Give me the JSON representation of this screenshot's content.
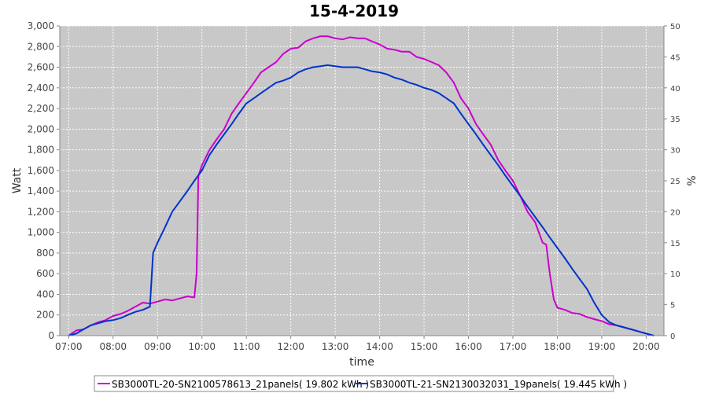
{
  "chart_data": {
    "type": "line",
    "title": "15-4-2019",
    "xlabel": "time",
    "ylabel": "Watt",
    "y2label": "%",
    "xlim": [
      6.8,
      20.4
    ],
    "ylim": [
      0,
      3000
    ],
    "y2lim": [
      0,
      50
    ],
    "xticks": [
      7,
      8,
      9,
      10,
      11,
      12,
      13,
      14,
      15,
      16,
      17,
      18,
      19,
      20
    ],
    "xtick_labels": [
      "07:00",
      "08:00",
      "09:00",
      "10:00",
      "11:00",
      "12:00",
      "13:00",
      "14:00",
      "15:00",
      "16:00",
      "17:00",
      "18:00",
      "19:00",
      "20:00"
    ],
    "yticks": [
      0,
      200,
      400,
      600,
      800,
      1000,
      1200,
      1400,
      1600,
      1800,
      2000,
      2200,
      2400,
      2600,
      2800,
      3000
    ],
    "ytick_labels": [
      "0",
      "200",
      "400",
      "600",
      "800",
      "1,000",
      "1,200",
      "1,400",
      "1,600",
      "1,800",
      "2,000",
      "2,200",
      "2,400",
      "2,600",
      "2,800",
      "3,000"
    ],
    "y2ticks": [
      0,
      5,
      10,
      15,
      20,
      25,
      30,
      35,
      40,
      45,
      50
    ],
    "y2tick_labels": [
      "0",
      "5",
      "10",
      "15",
      "20",
      "25",
      "30",
      "35",
      "40",
      "45",
      "50"
    ],
    "grid": true,
    "legend_position": "bottom",
    "series": [
      {
        "name": "SB3000TL-20-SN2100578613_21panels( 19.802 kWh )",
        "color": "#cc00cc",
        "x": [
          7.0,
          7.17,
          7.33,
          7.5,
          7.67,
          7.83,
          8.0,
          8.17,
          8.33,
          8.5,
          8.67,
          8.83,
          9.0,
          9.17,
          9.33,
          9.5,
          9.67,
          9.83,
          9.88,
          9.92,
          10.0,
          10.17,
          10.33,
          10.5,
          10.67,
          10.83,
          11.0,
          11.17,
          11.33,
          11.5,
          11.67,
          11.83,
          12.0,
          12.17,
          12.33,
          12.5,
          12.67,
          12.83,
          13.0,
          13.17,
          13.33,
          13.5,
          13.67,
          13.83,
          14.0,
          14.17,
          14.33,
          14.5,
          14.67,
          14.83,
          15.0,
          15.17,
          15.33,
          15.5,
          15.67,
          15.83,
          16.0,
          16.17,
          16.33,
          16.5,
          16.67,
          16.83,
          17.0,
          17.17,
          17.33,
          17.5,
          17.67,
          17.75,
          17.83,
          17.92,
          18.0,
          18.17,
          18.33,
          18.5,
          18.67,
          18.83,
          19.0,
          19.17,
          19.33,
          19.5,
          19.67,
          19.83,
          20.0,
          20.17
        ],
        "y": [
          0,
          50,
          60,
          100,
          130,
          150,
          190,
          210,
          240,
          280,
          320,
          310,
          330,
          350,
          340,
          360,
          380,
          370,
          600,
          1550,
          1650,
          1800,
          1900,
          2000,
          2150,
          2250,
          2350,
          2450,
          2550,
          2600,
          2650,
          2730,
          2780,
          2790,
          2850,
          2880,
          2900,
          2900,
          2880,
          2870,
          2890,
          2880,
          2880,
          2850,
          2820,
          2780,
          2770,
          2750,
          2750,
          2700,
          2680,
          2650,
          2620,
          2550,
          2450,
          2300,
          2200,
          2050,
          1950,
          1850,
          1700,
          1600,
          1500,
          1350,
          1200,
          1100,
          900,
          880,
          600,
          350,
          270,
          250,
          220,
          210,
          180,
          160,
          140,
          110,
          100,
          80,
          60,
          40,
          20,
          0
        ]
      },
      {
        "name": "SB3000TL-21-SN2130032031_19panels( 19.445 kWh )",
        "color": "#0033cc",
        "x": [
          7.0,
          7.17,
          7.33,
          7.5,
          7.67,
          7.83,
          8.0,
          8.17,
          8.33,
          8.5,
          8.67,
          8.83,
          8.9,
          9.0,
          9.17,
          9.33,
          9.5,
          9.67,
          9.83,
          10.0,
          10.17,
          10.33,
          10.5,
          10.67,
          10.83,
          11.0,
          11.17,
          11.33,
          11.5,
          11.67,
          11.83,
          12.0,
          12.17,
          12.33,
          12.5,
          12.67,
          12.83,
          13.0,
          13.17,
          13.33,
          13.5,
          13.67,
          13.83,
          14.0,
          14.17,
          14.33,
          14.5,
          14.67,
          14.83,
          15.0,
          15.17,
          15.33,
          15.5,
          15.67,
          15.83,
          16.0,
          16.17,
          16.33,
          16.5,
          16.67,
          16.83,
          17.0,
          17.17,
          17.33,
          17.5,
          17.67,
          17.83,
          18.0,
          18.17,
          18.33,
          18.5,
          18.67,
          18.83,
          19.0,
          19.17,
          19.33,
          19.5,
          19.67,
          19.83,
          20.0,
          20.17
        ],
        "y": [
          0,
          20,
          60,
          100,
          120,
          140,
          150,
          170,
          200,
          230,
          250,
          280,
          800,
          900,
          1050,
          1200,
          1300,
          1400,
          1500,
          1600,
          1750,
          1850,
          1950,
          2050,
          2150,
          2250,
          2300,
          2350,
          2400,
          2450,
          2470,
          2500,
          2550,
          2580,
          2600,
          2610,
          2620,
          2610,
          2600,
          2600,
          2600,
          2580,
          2560,
          2550,
          2530,
          2500,
          2480,
          2450,
          2430,
          2400,
          2380,
          2350,
          2300,
          2250,
          2150,
          2050,
          1950,
          1850,
          1750,
          1650,
          1550,
          1450,
          1350,
          1250,
          1150,
          1050,
          950,
          850,
          750,
          650,
          550,
          450,
          320,
          200,
          130,
          100,
          80,
          60,
          40,
          20,
          0
        ]
      }
    ]
  }
}
